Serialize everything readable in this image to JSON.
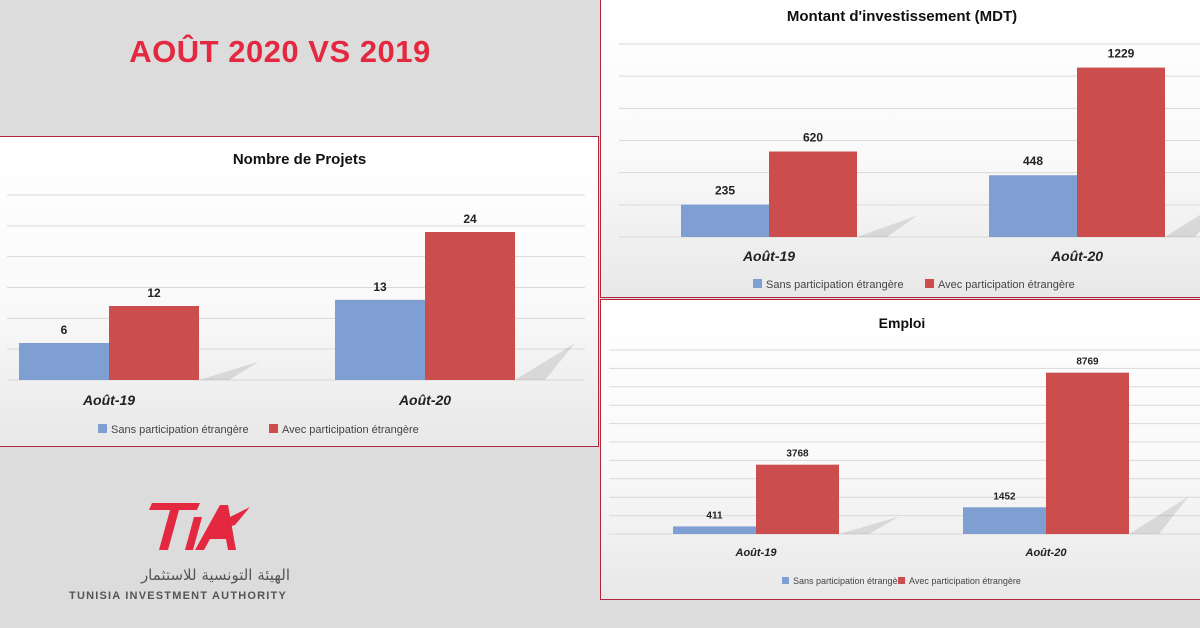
{
  "page": {
    "title": "AOÛT 2020 VS 2019"
  },
  "colors": {
    "series_sans": "#7f9fd3",
    "series_avec": "#cc4d4d",
    "brand": "#e3283f"
  },
  "logo": {
    "brand_text": "TIA",
    "arabic": "الهيئة التونسية للاستثمار",
    "english": "TUNISIA INVESTMENT AUTHORITY"
  },
  "chart_data": [
    {
      "type": "bar",
      "title": "Nombre de Projets",
      "categories": [
        "Août-19",
        "Août-20"
      ],
      "series": [
        {
          "name": "Sans participation étrangère",
          "values": [
            6,
            13
          ]
        },
        {
          "name": "Avec participation étrangère",
          "values": [
            12,
            24
          ]
        }
      ],
      "ylim": [
        0,
        30
      ],
      "grid": true,
      "legend": "bottom"
    },
    {
      "type": "bar",
      "title": "Montant d'investissement (MDT)",
      "categories": [
        "Août-19",
        "Août-20"
      ],
      "series": [
        {
          "name": "Sans participation étrangère",
          "values": [
            235,
            448
          ]
        },
        {
          "name": "Avec participation étrangère",
          "values": [
            620,
            1229
          ]
        }
      ],
      "ylim": [
        0,
        1400
      ],
      "grid": true,
      "legend": "bottom"
    },
    {
      "type": "bar",
      "title": "Emploi",
      "categories": [
        "Août-19",
        "Août-20"
      ],
      "series": [
        {
          "name": "Sans participation étrangère",
          "values": [
            411,
            1452
          ]
        },
        {
          "name": "Avec participation étrangère",
          "values": [
            3768,
            8769
          ]
        }
      ],
      "ylim": [
        0,
        10000
      ],
      "grid": true,
      "legend": "bottom"
    }
  ]
}
